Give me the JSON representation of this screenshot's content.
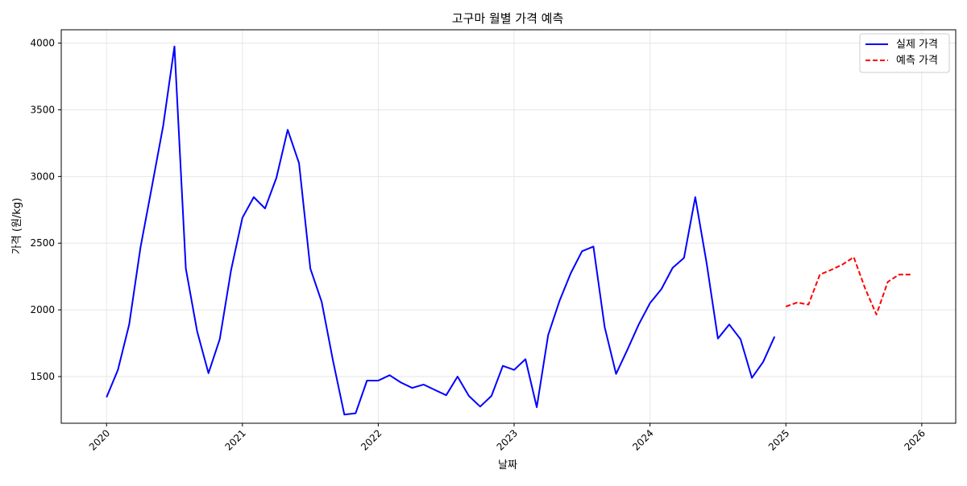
{
  "chart_data": {
    "type": "line",
    "title": "고구마 월별 가격 예측",
    "xlabel": "날짜",
    "ylabel": "가격 (원/kg)",
    "x_ticks": [
      "2020",
      "2021",
      "2022",
      "2023",
      "2024",
      "2025",
      "2026"
    ],
    "y_ticks": [
      1500,
      2000,
      2500,
      3000,
      3500,
      4000
    ],
    "xlim": [
      "2019-09",
      "2026-04"
    ],
    "ylim": [
      1150,
      4100
    ],
    "grid": true,
    "legend_position": "top-right",
    "series": [
      {
        "name": "실제 가격",
        "color": "#0000ff",
        "style": "solid",
        "x": [
          "2020-01",
          "2020-02",
          "2020-03",
          "2020-04",
          "2020-05",
          "2020-06",
          "2020-07",
          "2020-08",
          "2020-09",
          "2020-10",
          "2020-11",
          "2020-12",
          "2021-01",
          "2021-02",
          "2021-03",
          "2021-04",
          "2021-05",
          "2021-06",
          "2021-07",
          "2021-08",
          "2021-09",
          "2021-10",
          "2021-11",
          "2021-12",
          "2022-01",
          "2022-02",
          "2022-03",
          "2022-04",
          "2022-05",
          "2022-06",
          "2022-07",
          "2022-08",
          "2022-09",
          "2022-10",
          "2022-11",
          "2022-12",
          "2023-01",
          "2023-02",
          "2023-03",
          "2023-04",
          "2023-05",
          "2023-06",
          "2023-07",
          "2023-08",
          "2023-09",
          "2023-10",
          "2023-11",
          "2023-12",
          "2024-01",
          "2024-02",
          "2024-03",
          "2024-04",
          "2024-05",
          "2024-06",
          "2024-07",
          "2024-08",
          "2024-09",
          "2024-10",
          "2024-11",
          "2024-12"
        ],
        "values": [
          1345,
          1550,
          1890,
          2470,
          2920,
          3380,
          3975,
          2310,
          1840,
          1525,
          1780,
          2300,
          2690,
          2845,
          2760,
          2990,
          3350,
          3100,
          2310,
          2060,
          1620,
          1215,
          1225,
          1470,
          1470,
          1510,
          1455,
          1415,
          1440,
          1400,
          1360,
          1500,
          1355,
          1275,
          1355,
          1580,
          1550,
          1630,
          1270,
          1810,
          2065,
          2275,
          2440,
          2475,
          1870,
          1520,
          1700,
          1890,
          2050,
          2155,
          2315,
          2390,
          2845,
          2350,
          1785,
          1890,
          1780,
          1490,
          1610,
          1800
        ]
      },
      {
        "name": "예측 가격",
        "color": "#ff0000",
        "style": "dashed",
        "x": [
          "2025-01",
          "2025-02",
          "2025-03",
          "2025-04",
          "2025-05",
          "2025-06",
          "2025-07",
          "2025-08",
          "2025-09",
          "2025-10",
          "2025-11",
          "2025-12"
        ],
        "values": [
          2025,
          2055,
          2040,
          2265,
          2300,
          2340,
          2395,
          2160,
          1965,
          2210,
          2265,
          2265
        ]
      }
    ]
  }
}
